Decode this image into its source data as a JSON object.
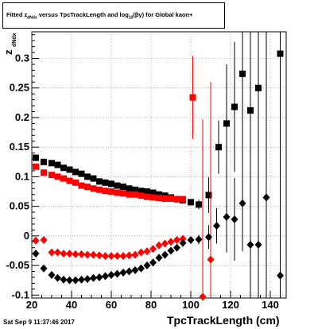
{
  "title": {
    "prefix": "Fitted  z",
    "z_sub": "dNdx",
    "middle": " versus TpcTrackLength and log",
    "log_sub": "10",
    "suffix": "(βγ) for Global kaon+"
  },
  "footer_text": "Sat Sep  9 11:37:46 2017",
  "colors": {
    "black_series": "#000000",
    "red_series": "#ff0000",
    "grid": "#888888"
  },
  "chart_data": {
    "type": "scatter",
    "xlabel": "TpcTrackLength (cm)",
    "ylabel": "z",
    "ylabel_sub": "dNdx",
    "xlim": [
      20,
      148
    ],
    "ylim": [
      -0.105,
      0.345
    ],
    "xticks": [
      20,
      40,
      60,
      80,
      100,
      120,
      140
    ],
    "yticks": [
      -0.1,
      -0.05,
      0,
      0.05,
      0.1,
      0.15,
      0.2,
      0.25,
      0.3
    ],
    "ytick_labels": [
      "-0.1",
      "-0.05",
      "0",
      "0.05",
      "0.1",
      "0.15",
      "0.2",
      "0.25",
      "0.3"
    ],
    "grid": true,
    "series": [
      {
        "marker": "square",
        "color": "#000000",
        "points": [
          [
            22,
            0.132
          ],
          [
            26,
            0.125
          ],
          [
            30,
            0.123
          ],
          [
            33,
            0.12
          ],
          [
            36,
            0.115
          ],
          [
            39,
            0.112
          ],
          [
            42,
            0.108
          ],
          [
            45,
            0.105
          ],
          [
            48,
            0.1
          ],
          [
            51,
            0.097
          ],
          [
            54,
            0.092
          ],
          [
            57,
            0.09
          ],
          [
            60,
            0.088
          ],
          [
            63,
            0.085
          ],
          [
            66,
            0.083
          ],
          [
            69,
            0.08
          ],
          [
            72,
            0.078
          ],
          [
            75,
            0.076
          ],
          [
            78,
            0.075
          ],
          [
            81,
            0.073
          ],
          [
            84,
            0.07
          ],
          [
            87,
            0.068
          ],
          [
            90,
            0.065
          ],
          [
            93,
            0.062
          ],
          [
            96,
            0.06
          ],
          [
            100,
            0.057
          ],
          [
            104,
            0.053
          ],
          [
            109,
            0.069
          ],
          [
            114,
            0.15
          ],
          [
            118,
            0.19
          ],
          [
            122,
            0.218
          ],
          [
            126,
            0.274
          ],
          [
            130,
            0.212
          ],
          [
            134,
            0.25
          ],
          [
            145,
            0.308
          ]
        ],
        "errors": [
          [
            22,
            0.002
          ],
          [
            26,
            0.002
          ],
          [
            30,
            0.002
          ],
          [
            33,
            0.002
          ],
          [
            36,
            0.002
          ],
          [
            39,
            0.002
          ],
          [
            42,
            0.002
          ],
          [
            45,
            0.002
          ],
          [
            48,
            0.002
          ],
          [
            51,
            0.002
          ],
          [
            54,
            0.002
          ],
          [
            57,
            0.002
          ],
          [
            60,
            0.002
          ],
          [
            63,
            0.002
          ],
          [
            66,
            0.002
          ],
          [
            69,
            0.002
          ],
          [
            72,
            0.002
          ],
          [
            75,
            0.002
          ],
          [
            78,
            0.002
          ],
          [
            81,
            0.002
          ],
          [
            84,
            0.002
          ],
          [
            87,
            0.002
          ],
          [
            90,
            0.003
          ],
          [
            93,
            0.003
          ],
          [
            96,
            0.004
          ],
          [
            100,
            0.005
          ],
          [
            104,
            0.008
          ],
          [
            109,
            0.03
          ],
          [
            114,
            0.045
          ],
          [
            118,
            0.1
          ],
          [
            122,
            0.11
          ],
          [
            126,
            0.3
          ],
          [
            130,
            0.3
          ],
          [
            134,
            0.3
          ],
          [
            145,
            0.3
          ]
        ]
      },
      {
        "marker": "square",
        "color": "#ff0000",
        "points": [
          [
            22,
            0.117
          ],
          [
            26,
            0.107
          ],
          [
            30,
            0.103
          ],
          [
            33,
            0.1
          ],
          [
            36,
            0.097
          ],
          [
            39,
            0.093
          ],
          [
            42,
            0.09
          ],
          [
            45,
            0.085
          ],
          [
            48,
            0.083
          ],
          [
            51,
            0.08
          ],
          [
            54,
            0.078
          ],
          [
            57,
            0.076
          ],
          [
            60,
            0.075
          ],
          [
            63,
            0.073
          ],
          [
            66,
            0.072
          ],
          [
            69,
            0.07
          ],
          [
            72,
            0.07
          ],
          [
            75,
            0.068
          ],
          [
            78,
            0.066
          ],
          [
            81,
            0.065
          ],
          [
            84,
            0.064
          ],
          [
            87,
            0.063
          ],
          [
            90,
            0.063
          ],
          [
            93,
            0.062
          ],
          [
            96,
            0.062
          ],
          [
            101,
            0.234
          ]
        ],
        "errors": [
          [
            22,
            0.002
          ],
          [
            26,
            0.002
          ],
          [
            30,
            0.002
          ],
          [
            33,
            0.002
          ],
          [
            36,
            0.002
          ],
          [
            39,
            0.002
          ],
          [
            42,
            0.002
          ],
          [
            45,
            0.002
          ],
          [
            48,
            0.002
          ],
          [
            51,
            0.002
          ],
          [
            54,
            0.002
          ],
          [
            57,
            0.002
          ],
          [
            60,
            0.002
          ],
          [
            63,
            0.002
          ],
          [
            66,
            0.002
          ],
          [
            69,
            0.002
          ],
          [
            72,
            0.002
          ],
          [
            75,
            0.002
          ],
          [
            78,
            0.002
          ],
          [
            81,
            0.002
          ],
          [
            84,
            0.002
          ],
          [
            87,
            0.002
          ],
          [
            90,
            0.003
          ],
          [
            93,
            0.003
          ],
          [
            96,
            0.004
          ],
          [
            101,
            0.07
          ]
        ]
      },
      {
        "marker": "diamond",
        "color": "#ff0000",
        "points": [
          [
            22,
            -0.008
          ],
          [
            26,
            -0.007
          ],
          [
            30,
            -0.028
          ],
          [
            33,
            -0.028
          ],
          [
            36,
            -0.03
          ],
          [
            39,
            -0.03
          ],
          [
            42,
            -0.031
          ],
          [
            45,
            -0.031
          ],
          [
            48,
            -0.032
          ],
          [
            51,
            -0.032
          ],
          [
            54,
            -0.033
          ],
          [
            57,
            -0.034
          ],
          [
            60,
            -0.034
          ],
          [
            63,
            -0.034
          ],
          [
            66,
            -0.034
          ],
          [
            69,
            -0.033
          ],
          [
            72,
            -0.032
          ],
          [
            75,
            -0.028
          ],
          [
            78,
            -0.026
          ],
          [
            81,
            -0.022
          ],
          [
            84,
            -0.016
          ],
          [
            87,
            -0.013
          ],
          [
            90,
            -0.01
          ],
          [
            93,
            -0.007
          ],
          [
            96,
            -0.005
          ],
          [
            106,
            -0.103
          ],
          [
            110,
            -0.04
          ]
        ],
        "errors": [
          [
            22,
            0.002
          ],
          [
            26,
            0.002
          ],
          [
            30,
            0.002
          ],
          [
            33,
            0.002
          ],
          [
            36,
            0.002
          ],
          [
            39,
            0.002
          ],
          [
            42,
            0.002
          ],
          [
            45,
            0.002
          ],
          [
            48,
            0.002
          ],
          [
            51,
            0.002
          ],
          [
            54,
            0.002
          ],
          [
            57,
            0.002
          ],
          [
            60,
            0.002
          ],
          [
            63,
            0.002
          ],
          [
            66,
            0.002
          ],
          [
            69,
            0.002
          ],
          [
            72,
            0.002
          ],
          [
            75,
            0.002
          ],
          [
            78,
            0.002
          ],
          [
            81,
            0.002
          ],
          [
            84,
            0.002
          ],
          [
            87,
            0.003
          ],
          [
            90,
            0.003
          ],
          [
            93,
            0.003
          ],
          [
            96,
            0.004
          ],
          [
            106,
            0.3
          ],
          [
            110,
            0.3
          ]
        ]
      },
      {
        "marker": "diamond",
        "color": "#000000",
        "points": [
          [
            22,
            -0.03
          ],
          [
            26,
            -0.055
          ],
          [
            30,
            -0.066
          ],
          [
            33,
            -0.071
          ],
          [
            36,
            -0.074
          ],
          [
            39,
            -0.075
          ],
          [
            42,
            -0.075
          ],
          [
            45,
            -0.074
          ],
          [
            48,
            -0.073
          ],
          [
            51,
            -0.071
          ],
          [
            54,
            -0.07
          ],
          [
            57,
            -0.068
          ],
          [
            60,
            -0.066
          ],
          [
            63,
            -0.064
          ],
          [
            66,
            -0.062
          ],
          [
            69,
            -0.06
          ],
          [
            72,
            -0.058
          ],
          [
            75,
            -0.055
          ],
          [
            78,
            -0.05
          ],
          [
            81,
            -0.045
          ],
          [
            84,
            -0.037
          ],
          [
            87,
            -0.032
          ],
          [
            90,
            -0.025
          ],
          [
            93,
            -0.02
          ],
          [
            96,
            -0.012
          ],
          [
            100,
            -0.007
          ],
          [
            104,
            -0.006
          ],
          [
            109,
            -0.002
          ],
          [
            113,
            0.017
          ],
          [
            118,
            0.032
          ],
          [
            122,
            0.028
          ],
          [
            126,
            0.055
          ],
          [
            130,
            -0.015
          ],
          [
            134,
            -0.015
          ],
          [
            138,
            0.065
          ],
          [
            145,
            -0.067
          ]
        ],
        "errors": [
          [
            22,
            0.002
          ],
          [
            26,
            0.002
          ],
          [
            30,
            0.002
          ],
          [
            33,
            0.002
          ],
          [
            36,
            0.002
          ],
          [
            39,
            0.002
          ],
          [
            42,
            0.002
          ],
          [
            45,
            0.002
          ],
          [
            48,
            0.002
          ],
          [
            51,
            0.002
          ],
          [
            54,
            0.002
          ],
          [
            57,
            0.002
          ],
          [
            60,
            0.002
          ],
          [
            63,
            0.002
          ],
          [
            66,
            0.002
          ],
          [
            69,
            0.002
          ],
          [
            72,
            0.002
          ],
          [
            75,
            0.002
          ],
          [
            78,
            0.002
          ],
          [
            81,
            0.002
          ],
          [
            84,
            0.002
          ],
          [
            87,
            0.003
          ],
          [
            90,
            0.003
          ],
          [
            93,
            0.003
          ],
          [
            96,
            0.004
          ],
          [
            100,
            0.005
          ],
          [
            104,
            0.008
          ],
          [
            109,
            0.02
          ],
          [
            113,
            0.03
          ],
          [
            118,
            0.06
          ],
          [
            122,
            0.07
          ],
          [
            126,
            0.06
          ],
          [
            130,
            0.3
          ],
          [
            134,
            0.3
          ],
          [
            138,
            0.3
          ],
          [
            145,
            0.3
          ]
        ]
      }
    ]
  }
}
